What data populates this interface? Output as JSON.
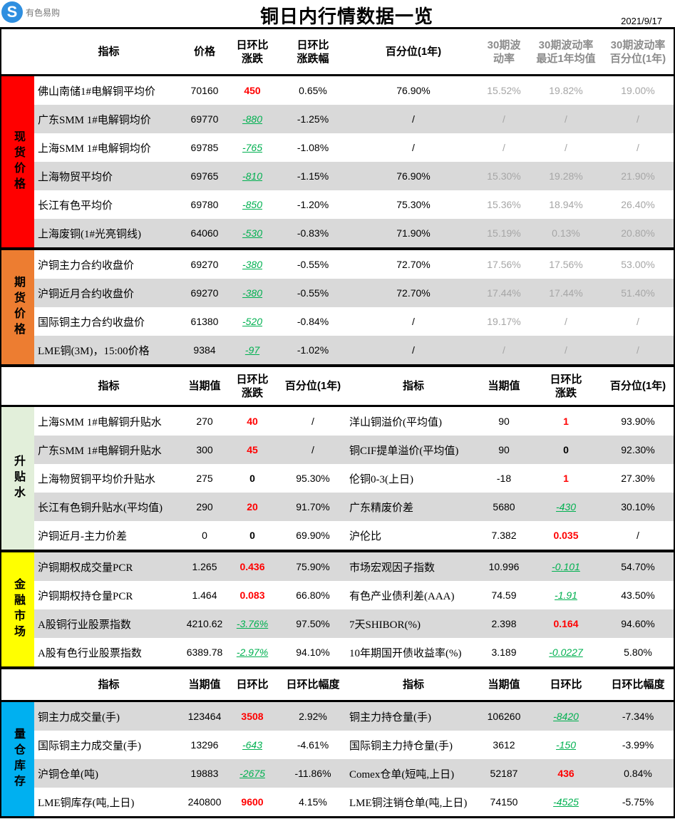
{
  "header": {
    "logo_text": "有色易购",
    "title": "铜日内行情数据一览",
    "date": "2021/9/17"
  },
  "colors": {
    "up": "#ff0000",
    "down": "#00b050",
    "spot": "#ff0000",
    "futures": "#ed7d31",
    "premium": "#e2efda",
    "finance": "#ffff00",
    "inventory": "#00b0f0"
  },
  "blocks": [
    {
      "headers": [
        "指标",
        "价格",
        "日环比\n涨跌",
        "日环比\n涨跌幅",
        "百分位(1年)",
        "30期波\n动率",
        "30期波动率\n最近1年均值",
        "30期波动率\n百分位(1年)"
      ],
      "groups": [
        {
          "category": "现货价格",
          "color": "#ff0000",
          "first_alt": false,
          "rows": [
            [
              "佛山南储1#电解铜平均价",
              "70160",
              "450",
              "0.65%",
              "76.90%",
              "15.52%",
              "19.82%",
              "19.00%"
            ],
            [
              "广东SMM 1#电解铜均价",
              "69770",
              "-880",
              "-1.25%",
              "/",
              "/",
              "/",
              "/"
            ],
            [
              "上海SMM 1#电解铜均价",
              "69785",
              "-765",
              "-1.08%",
              "/",
              "/",
              "/",
              "/"
            ],
            [
              "上海物贸平均价",
              "69765",
              "-810",
              "-1.15%",
              "76.90%",
              "15.30%",
              "19.28%",
              "21.90%"
            ],
            [
              "长江有色平均价",
              "69780",
              "-850",
              "-1.20%",
              "75.30%",
              "15.36%",
              "18.94%",
              "26.40%"
            ],
            [
              "上海废铜(1#光亮铜线)",
              "64060",
              "-530",
              "-0.83%",
              "71.90%",
              "15.19%",
              "0.13%",
              "20.80%"
            ]
          ]
        },
        {
          "category": "期货价格",
          "color": "#ed7d31",
          "first_alt": false,
          "rows": [
            [
              "沪铜主力合约收盘价",
              "69270",
              "-380",
              "-0.55%",
              "72.70%",
              "17.56%",
              "17.56%",
              "53.00%"
            ],
            [
              "沪铜近月合约收盘价",
              "69270",
              "-380",
              "-0.55%",
              "72.70%",
              "17.44%",
              "17.44%",
              "51.40%"
            ],
            [
              "国际铜主力合约收盘价",
              "61380",
              "-520",
              "-0.84%",
              "/",
              "19.17%",
              "/",
              "/"
            ],
            [
              "LME铜(3M)，15:00价格",
              "9384",
              "-97",
              "-1.02%",
              "/",
              "/",
              "/",
              "/"
            ]
          ]
        }
      ]
    },
    {
      "headers": [
        "指标",
        "当期值",
        "日环比\n涨跌",
        "百分位(1年)",
        "指标",
        "当期值",
        "日环比\n涨跌",
        "百分位(1年)"
      ],
      "groups": [
        {
          "category": "升贴水",
          "color": "#e2efda",
          "first_alt": false,
          "rows": [
            [
              "上海SMM 1#电解铜升贴水",
              "270",
              "40",
              "/",
              "洋山铜溢价(平均值)",
              "90",
              "1",
              "93.90%"
            ],
            [
              "广东SMM 1#电解铜升贴水",
              "300",
              "45",
              "/",
              "铜CIF提单溢价(平均值)",
              "90",
              "0",
              "92.30%"
            ],
            [
              "上海物贸铜平均价升贴水",
              "275",
              "0",
              "95.30%",
              "伦铜0-3(上日)",
              "-18",
              "1",
              "27.30%"
            ],
            [
              "长江有色铜升贴水(平均值)",
              "290",
              "20",
              "91.70%",
              "广东精废价差",
              "5680",
              "-430",
              "30.10%"
            ],
            [
              "沪铜近月-主力价差",
              "0",
              "0",
              "69.90%",
              "沪伦比",
              "7.382",
              "0.035",
              "/"
            ]
          ]
        },
        {
          "category": "金融市场",
          "color": "#ffff00",
          "first_alt": true,
          "rows": [
            [
              "沪铜期权成交量PCR",
              "1.265",
              "0.436",
              "75.90%",
              "市场宏观因子指数",
              "10.996",
              "-0.101",
              "54.70%"
            ],
            [
              "沪铜期权持仓量PCR",
              "1.464",
              "0.083",
              "66.80%",
              "有色产业债利差(AAA)",
              "74.59",
              "-1.91",
              "43.50%"
            ],
            [
              "A股铜行业股票指数",
              "4210.62",
              "-3.76%",
              "97.50%",
              "7天SHIBOR(%)",
              "2.398",
              "0.164",
              "94.60%"
            ],
            [
              "A股有色行业股票指数",
              "6389.78",
              "-2.97%",
              "94.10%",
              "10年期国开债收益率(%)",
              "3.189",
              "-0.0227",
              "5.80%"
            ]
          ]
        }
      ]
    },
    {
      "headers": [
        "指标",
        "当期值",
        "日环比",
        "日环比幅度",
        "指标",
        "当期值",
        "日环比",
        "日环比幅度"
      ],
      "groups": [
        {
          "category": "量仓库存",
          "color": "#00b0f0",
          "first_alt": true,
          "rows": [
            [
              "铜主力成交量(手)",
              "123464",
              "3508",
              "2.92%",
              "铜主力持仓量(手)",
              "106260",
              "-8420",
              "-7.34%"
            ],
            [
              "国际铜主力成交量(手)",
              "13296",
              "-643",
              "-4.61%",
              "国际铜主力持仓量(手)",
              "3612",
              "-150",
              "-3.99%"
            ],
            [
              "沪铜仓单(吨)",
              "19883",
              "-2675",
              "-11.86%",
              "Comex仓单(短吨,上日)",
              "52187",
              "436",
              "0.84%"
            ],
            [
              "LME铜库存(吨,上日)",
              "240800",
              "9600",
              "4.15%",
              "LME铜注销仓单(吨,上日)",
              "74150",
              "-4525",
              "-5.75%"
            ]
          ]
        }
      ]
    }
  ]
}
